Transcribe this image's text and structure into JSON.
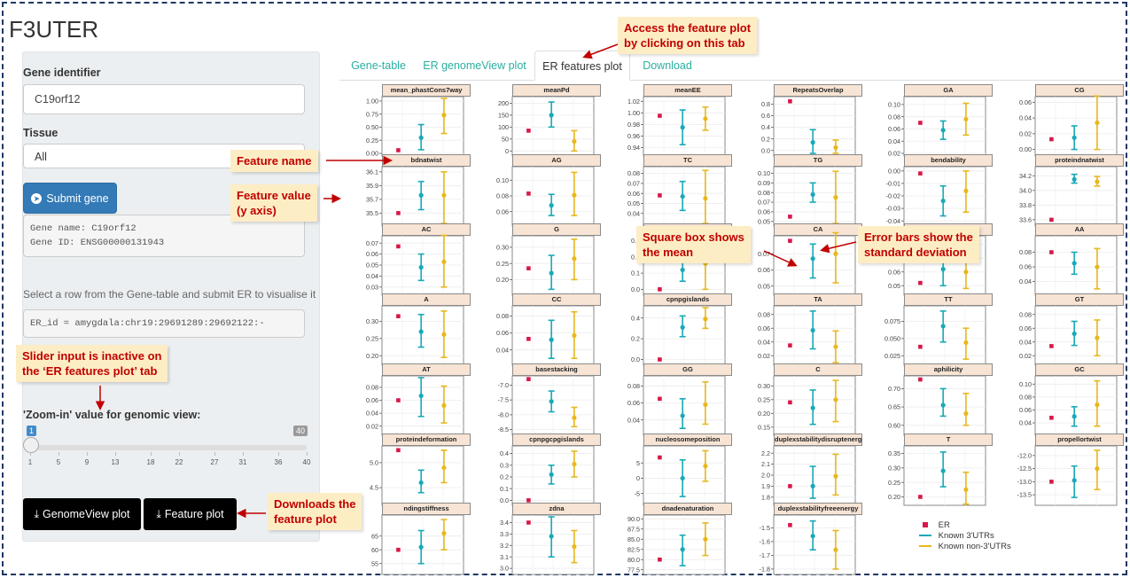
{
  "app": {
    "title": "F3UTER"
  },
  "sidebar": {
    "gene_label": "Gene identifier",
    "gene_value": "C19orf12",
    "tissue_label": "Tissue",
    "tissue_value": "All",
    "submit_label": "Submit gene",
    "gene_info": "Gene name: C19orf12\nGene ID: ENSG00000131943",
    "select_instruction": "Select a row from the Gene-table and submit ER to visualise it",
    "er_id": "ER_id = amygdala:chr19:29691289:29692122:-",
    "zoom_label": "'Zoom-in' value for genomic view:",
    "slider": {
      "min": 1,
      "max": 40,
      "value": 1,
      "min_label": "1",
      "max_label": "40",
      "ticks": [
        "1",
        "5",
        "9",
        "13",
        "18",
        "22",
        "27",
        "31",
        "36",
        "40"
      ]
    },
    "genomeview_btn": "GenomeView plot",
    "feature_btn": "Feature plot"
  },
  "tabs": [
    {
      "label": "Gene-table",
      "active": false
    },
    {
      "label": "ER genomeView plot",
      "active": false
    },
    {
      "label": "ER features plot",
      "active": true
    },
    {
      "label": "Download",
      "active": false
    }
  ],
  "colors": {
    "er": "#d7184a",
    "known_3utr": "#18a9b8",
    "known_non_3utr": "#e8b81c",
    "tab_text": "#2ab0a0",
    "annotation": "#c00000"
  },
  "legend": [
    {
      "label": "ER",
      "color": "#d7184a",
      "shape": "square"
    },
    {
      "label": "Known 3'UTRs",
      "color": "#18a9b8",
      "shape": "errorbar"
    },
    {
      "label": "Known non-3'UTRs",
      "color": "#e8b81c",
      "shape": "errorbar"
    }
  ],
  "annotations": {
    "access": "Access the feature plot\nby clicking on this tab",
    "feature_name": "Feature name",
    "feature_value": "Feature value\n(y axis)",
    "square_box": "Square box shows\nthe mean",
    "error_bars": "Error bars show the\nstandard deviation",
    "slider_inactive": "Slider input is inactive on\nthe ‘ER features plot’ tab",
    "downloads": "Downloads the\nfeature plot"
  },
  "chart_data": {
    "type": "scatter",
    "series": [
      {
        "name": "ER"
      },
      {
        "name": "Known 3'UTRs"
      },
      {
        "name": "Known non-3'UTRs"
      }
    ],
    "panels": [
      {
        "title": "mean_phastCons7way",
        "ticks": [
          "1.00",
          "0.75",
          "0.50",
          "0.25",
          "0.00"
        ],
        "ylim": [
          0,
          1.05
        ],
        "er": 0.06,
        "known": [
          0.3,
          0.07,
          0.55
        ],
        "non": [
          0.73,
          0.38,
          1.05
        ]
      },
      {
        "title": "meanPd",
        "ticks": [
          "200",
          "150",
          "100",
          "50",
          "0"
        ],
        "ylim": [
          -10,
          220
        ],
        "er": 85,
        "known": [
          150,
          100,
          205
        ],
        "non": [
          40,
          0,
          85
        ]
      },
      {
        "title": "meanEE",
        "ticks": [
          "1.02",
          "1.00",
          "0.98",
          "0.96",
          "0.94"
        ],
        "ylim": [
          0.93,
          1.025
        ],
        "er": 0.995,
        "known": [
          0.975,
          0.945,
          1.005
        ],
        "non": [
          0.99,
          0.97,
          1.01
        ]
      },
      {
        "title": "RepeatsOverlap",
        "ticks": [
          "0.8",
          "0.6",
          "0.4",
          "0.2",
          "0.0"
        ],
        "ylim": [
          -0.05,
          0.9
        ],
        "er": 0.85,
        "known": [
          0.14,
          -0.05,
          0.36
        ],
        "non": [
          0.05,
          -0.05,
          0.18
        ]
      },
      {
        "title": "GA",
        "ticks": [
          "0.10",
          "0.08",
          "0.06",
          "0.04",
          "0.02"
        ],
        "ylim": [
          0.02,
          0.11
        ],
        "er": 0.07,
        "known": [
          0.058,
          0.043,
          0.073
        ],
        "non": [
          0.076,
          0.05,
          0.102
        ]
      },
      {
        "title": "CG",
        "ticks": [
          "0.06",
          "0.04",
          "0.02",
          "0.00"
        ],
        "ylim": [
          -0.005,
          0.065
        ],
        "er": 0.013,
        "known": [
          0.015,
          0.0,
          0.03
        ],
        "non": [
          0.034,
          0.0,
          0.068
        ]
      },
      {
        "title": "bdnatwist",
        "ticks": [
          "36.1",
          "35.9",
          "35.7",
          "35.5"
        ],
        "ylim": [
          35.35,
          36.15
        ],
        "er": 35.5,
        "known": [
          35.76,
          35.55,
          35.96
        ],
        "non": [
          35.76,
          35.35,
          36.1
        ]
      },
      {
        "title": "AG",
        "ticks": [
          "0.10",
          "0.08",
          "0.06"
        ],
        "ylim": [
          0.045,
          0.115
        ],
        "er": 0.083,
        "known": [
          0.068,
          0.055,
          0.082
        ],
        "non": [
          0.081,
          0.055,
          0.11
        ]
      },
      {
        "title": "TC",
        "ticks": [
          "0.08",
          "0.07",
          "0.06",
          "0.05",
          "0.04"
        ],
        "ylim": [
          0.03,
          0.085
        ],
        "er": 0.058,
        "known": [
          0.057,
          0.043,
          0.072
        ],
        "non": [
          0.055,
          0.03,
          0.083
        ]
      },
      {
        "title": "TG",
        "ticks": [
          "0.10",
          "0.09",
          "0.08",
          "0.07",
          "0.06",
          "0.05"
        ],
        "ylim": [
          0.048,
          0.105
        ],
        "er": 0.055,
        "known": [
          0.078,
          0.07,
          0.09
        ],
        "non": [
          0.075,
          0.048,
          0.102
        ]
      },
      {
        "title": "bendability",
        "ticks": [
          "0.00",
          "-0.01",
          "-0.02",
          "-0.03",
          "-0.04"
        ],
        "ylim": [
          -0.042,
          0.002
        ],
        "er": -0.002,
        "known": [
          -0.024,
          -0.036,
          -0.012
        ],
        "non": [
          -0.016,
          -0.033,
          0.0
        ]
      },
      {
        "title": "proteindnatwist",
        "ticks": [
          "34.2",
          "34.0",
          "33.8",
          "33.6"
        ],
        "ylim": [
          33.55,
          34.3
        ],
        "er": 33.6,
        "known": [
          34.15,
          34.1,
          34.22
        ],
        "non": [
          34.12,
          34.06,
          34.19
        ]
      },
      {
        "title": "AC",
        "ticks": [
          "0.07",
          "0.06",
          "0.05",
          "0.04",
          "0.03"
        ],
        "ylim": [
          0.025,
          0.075
        ],
        "er": 0.067,
        "known": [
          0.048,
          0.036,
          0.06
        ],
        "non": [
          0.053,
          0.03,
          0.077
        ]
      },
      {
        "title": "G",
        "ticks": [
          "0.30",
          "0.25",
          "0.20"
        ],
        "ylim": [
          0.16,
          0.33
        ],
        "er": 0.235,
        "known": [
          0.22,
          0.17,
          0.275
        ],
        "non": [
          0.265,
          0.2,
          0.325
        ]
      },
      {
        "title": "",
        "ticks": [
          "0.3",
          "0.2",
          "0.1",
          "0.0"
        ],
        "ylim": [
          -0.02,
          0.32
        ],
        "er": 0.0,
        "known": [
          0.12,
          0.05,
          0.2
        ],
        "non": [
          0.16,
          0.0,
          0.3
        ]
      },
      {
        "title": "CA",
        "ticks": [
          "0.07",
          "0.06",
          "0.05"
        ],
        "ylim": [
          0.046,
          0.08
        ],
        "er": 0.078,
        "known": [
          0.067,
          0.055,
          0.076
        ],
        "non": [
          0.07,
          0.052,
          0.083
        ]
      },
      {
        "title": "",
        "ticks": [
          "0.08",
          "0.07",
          "0.06",
          "0.05"
        ],
        "ylim": [
          0.045,
          0.085
        ],
        "er": 0.052,
        "known": [
          0.062,
          0.05,
          0.075
        ],
        "non": [
          0.06,
          0.048,
          0.075
        ]
      },
      {
        "title": "AA",
        "ticks": [
          "0.08",
          "0.06",
          "0.04"
        ],
        "ylim": [
          0.025,
          0.1
        ],
        "er": 0.08,
        "known": [
          0.065,
          0.05,
          0.08
        ],
        "non": [
          0.06,
          0.03,
          0.085
        ]
      },
      {
        "title": "A",
        "ticks": [
          "0.30",
          "0.25",
          "0.20"
        ],
        "ylim": [
          0.18,
          0.34
        ],
        "er": 0.315,
        "known": [
          0.27,
          0.225,
          0.32
        ],
        "non": [
          0.262,
          0.195,
          0.33
        ]
      },
      {
        "title": "CC",
        "ticks": [
          "0.08",
          "0.06",
          "0.04"
        ],
        "ylim": [
          0.025,
          0.09
        ],
        "er": 0.053,
        "known": [
          0.052,
          0.03,
          0.075
        ],
        "non": [
          0.057,
          0.03,
          0.085
        ]
      },
      {
        "title": "cpnpgislands",
        "ticks": [
          "0.4",
          "0.2",
          "0.0"
        ],
        "ylim": [
          -0.03,
          0.5
        ],
        "er": 0.0,
        "known": [
          0.31,
          0.22,
          0.42
        ],
        "non": [
          0.39,
          0.3,
          0.5
        ]
      },
      {
        "title": "TA",
        "ticks": [
          "0.08",
          "0.06",
          "0.04",
          "0.02"
        ],
        "ylim": [
          0.01,
          0.09
        ],
        "er": 0.035,
        "known": [
          0.057,
          0.03,
          0.085
        ],
        "non": [
          0.033,
          0.01,
          0.056
        ]
      },
      {
        "title": "TT",
        "ticks": [
          "0.075",
          "0.050",
          "0.025"
        ],
        "ylim": [
          0.015,
          0.095
        ],
        "er": 0.038,
        "known": [
          0.068,
          0.045,
          0.09
        ],
        "non": [
          0.044,
          0.02,
          0.065
        ]
      },
      {
        "title": "GT",
        "ticks": [
          "0.08",
          "0.06",
          "0.04",
          "0.02"
        ],
        "ylim": [
          0.01,
          0.09
        ],
        "er": 0.034,
        "known": [
          0.052,
          0.035,
          0.07
        ],
        "non": [
          0.046,
          0.02,
          0.072
        ]
      },
      {
        "title": "AT",
        "ticks": [
          "0.08",
          "0.06",
          "0.04",
          "0.02"
        ],
        "ylim": [
          0.01,
          0.095
        ],
        "er": 0.06,
        "known": [
          0.067,
          0.035,
          0.095
        ],
        "non": [
          0.052,
          0.025,
          0.082
        ]
      },
      {
        "title": "basestacking",
        "ticks": [
          "-7.0",
          "-7.5",
          "-8.0",
          "-8.5"
        ],
        "ylim": [
          -8.6,
          -6.75
        ],
        "er": -6.8,
        "known": [
          -7.55,
          -7.9,
          -7.2
        ],
        "non": [
          -8.1,
          -8.4,
          -7.75
        ]
      },
      {
        "title": "GG",
        "ticks": [
          "0.08",
          "0.06",
          "0.04"
        ],
        "ylim": [
          0.025,
          0.09
        ],
        "er": 0.065,
        "known": [
          0.045,
          0.03,
          0.065
        ],
        "non": [
          0.058,
          0.035,
          0.085
        ]
      },
      {
        "title": "C",
        "ticks": [
          "0.30",
          "0.25",
          "0.20",
          "0.15"
        ],
        "ylim": [
          0.13,
          0.33
        ],
        "er": 0.24,
        "known": [
          0.22,
          0.16,
          0.285
        ],
        "non": [
          0.25,
          0.17,
          0.32
        ]
      },
      {
        "title": "aphilicity",
        "ticks": [
          "0.70",
          "0.65",
          "0.60"
        ],
        "ylim": [
          0.58,
          0.73
        ],
        "er": 0.725,
        "known": [
          0.655,
          0.625,
          0.7
        ],
        "non": [
          0.632,
          0.6,
          0.687
        ]
      },
      {
        "title": "GC",
        "ticks": [
          "0.10",
          "0.08",
          "0.06",
          "0.04"
        ],
        "ylim": [
          0.025,
          0.11
        ],
        "er": 0.048,
        "known": [
          0.05,
          0.035,
          0.065
        ],
        "non": [
          0.068,
          0.035,
          0.105
        ]
      },
      {
        "title": "proteindeformation",
        "ticks": [
          "5.0",
          "4.5"
        ],
        "ylim": [
          4.2,
          5.3
        ],
        "er": 5.25,
        "known": [
          4.6,
          4.4,
          4.85
        ],
        "non": [
          4.9,
          4.6,
          5.25
        ]
      },
      {
        "title": "cpnpgcpgislands",
        "ticks": [
          "0.4",
          "0.3",
          "0.2",
          "0.1",
          "0.0"
        ],
        "ylim": [
          -0.02,
          0.45
        ],
        "er": 0.0,
        "known": [
          0.22,
          0.14,
          0.3
        ],
        "non": [
          0.31,
          0.2,
          0.42
        ]
      },
      {
        "title": "nucleosomeposition",
        "ticks": [
          "5",
          "0",
          "-5"
        ],
        "ylim": [
          -8,
          10
        ],
        "er": 6.8,
        "known": [
          0,
          -6,
          6
        ],
        "non": [
          4,
          -1,
          9
        ]
      },
      {
        "title": "duplexstabilitydisruptenergy",
        "ticks": [
          "2.2",
          "2.1",
          "2.0",
          "1.9",
          "1.8"
        ],
        "ylim": [
          1.75,
          2.25
        ],
        "er": 1.9,
        "known": [
          1.9,
          1.79,
          2.08
        ],
        "non": [
          1.99,
          1.82,
          2.19
        ]
      },
      {
        "title": "T",
        "ticks": [
          "0.35",
          "0.30",
          "0.25",
          "0.20"
        ],
        "ylim": [
          0.18,
          0.37
        ],
        "er": 0.2,
        "known": [
          0.29,
          0.235,
          0.355
        ],
        "non": [
          0.225,
          0.175,
          0.285
        ]
      },
      {
        "title": "propellortwist",
        "ticks": [
          "-12.0",
          "-12.5",
          "-13.0",
          "-13.5"
        ],
        "ylim": [
          -13.8,
          -11.7
        ],
        "er": -13.0,
        "known": [
          -12.95,
          -13.6,
          -12.4
        ],
        "non": [
          -12.5,
          -13.3,
          -11.8
        ]
      },
      {
        "title": "ndingstiffness",
        "ticks": [
          "65",
          "60",
          "55"
        ],
        "ylim": [
          52,
          72
        ],
        "er": 60,
        "known": [
          61,
          55,
          67
        ],
        "non": [
          66,
          60,
          71
        ]
      },
      {
        "title": "zdna",
        "ticks": [
          "3.4",
          "3.3",
          "3.2",
          "3.1",
          "3.0"
        ],
        "ylim": [
          2.97,
          3.45
        ],
        "er": 3.4,
        "known": [
          3.28,
          3.1,
          3.45
        ],
        "non": [
          3.19,
          3.05,
          3.33
        ]
      },
      {
        "title": "dnadenaturation",
        "ticks": [
          "90.0",
          "87.5",
          "85.0",
          "82.5",
          "80.0",
          "77.5"
        ],
        "ylim": [
          77,
          90.5
        ],
        "er": 80.0,
        "known": [
          82.5,
          78.5,
          86.0
        ],
        "non": [
          85.0,
          81.0,
          89.0
        ]
      },
      {
        "title": "duplexstabilityfreeenergy",
        "ticks": [
          "-1.5",
          "-1.6",
          "-1.7",
          "-1.8"
        ],
        "ylim": [
          -1.82,
          -1.42
        ],
        "er": -1.48,
        "known": [
          -1.56,
          -1.66,
          -1.45
        ],
        "non": [
          -1.66,
          -1.8,
          -1.52
        ]
      }
    ]
  }
}
